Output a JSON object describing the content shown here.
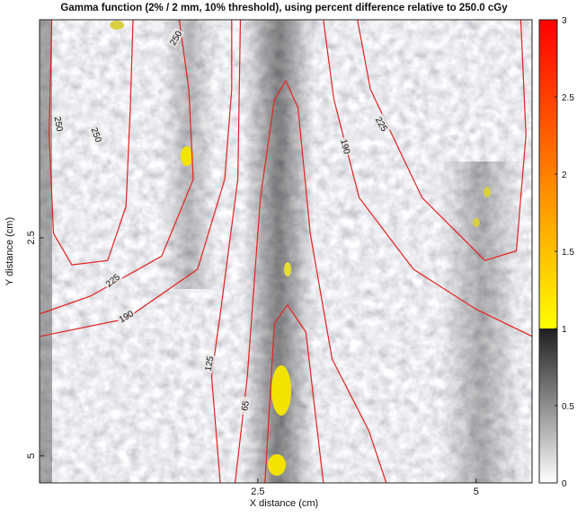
{
  "chart_data": {
    "type": "heatmap",
    "title": "Gamma function (2% / 2 mm, 10% threshold), using percent difference relative to 250.0 cGy",
    "xlabel": "X distance (cm)",
    "ylabel": "Y distance (cm)",
    "xlim": [
      0,
      5.64
    ],
    "ylim": [
      0,
      5.31
    ],
    "y_inverted": true,
    "xticks": [
      2.5,
      5
    ],
    "yticks": [
      2.5,
      5
    ],
    "contour_color": "#e3221f",
    "contours": [
      {
        "level": 250,
        "x": [
          0.14,
          0.11,
          0.16,
          0.37,
          0.78,
          0.99,
          1.04,
          1.07
        ],
        "y": [
          0,
          1.32,
          2.45,
          2.81,
          2.76,
          2.14,
          1.01,
          0
        ]
      },
      {
        "level": 225,
        "x": [
          0.01,
          0.58,
          1.4,
          1.76,
          1.71,
          1.6,
          null,
          3.64,
          3.79,
          4.38,
          5.1,
          5.46,
          5.57,
          5.51
        ],
        "y": [
          3.37,
          3.17,
          2.71,
          1.83,
          0.8,
          0,
          null,
          0,
          0.8,
          2.04,
          2.76,
          2.65,
          1.32,
          0
        ]
      },
      {
        "level": 190,
        "x": [
          0.01,
          0.99,
          1.81,
          2.12,
          2.2,
          2.2,
          null,
          3.25,
          3.37,
          3.66,
          4.28,
          5.0,
          5.64
        ],
        "y": [
          3.63,
          3.43,
          2.86,
          1.83,
          0.8,
          0,
          null,
          0,
          0.91,
          2.04,
          2.86,
          3.32,
          3.63
        ]
      },
      {
        "level": 125,
        "x": [
          2.3,
          2.27,
          2.07,
          1.97,
          2.07
        ],
        "y": [
          0,
          1.83,
          3.37,
          4.09,
          5.31
        ]
      },
      {
        "level": 65,
        "x": [
          2.24,
          2.38,
          2.53,
          2.69,
          2.82,
          2.96,
          3.1,
          3.35,
          3.77,
          3.97,
          null,
          2.58,
          2.69,
          2.84,
          3.05,
          3.25
        ],
        "y": [
          5.31,
          4.09,
          2.04,
          0.91,
          0.7,
          1.01,
          2.45,
          3.89,
          4.71,
          5.31,
          null,
          5.31,
          3.48,
          3.27,
          3.58,
          5.31
        ]
      }
    ],
    "colorbar": {
      "ylim": [
        0,
        3
      ],
      "yticks": [
        0,
        0.5,
        1,
        1.5,
        2,
        2.5,
        3
      ],
      "colormap": [
        {
          "value": 0,
          "color": "#ffffff"
        },
        {
          "value": 1,
          "color": "#1e1e1e"
        },
        {
          "value": 1,
          "color": "#ffff00"
        },
        {
          "value": 3,
          "color": "#ff0000"
        }
      ]
    }
  }
}
